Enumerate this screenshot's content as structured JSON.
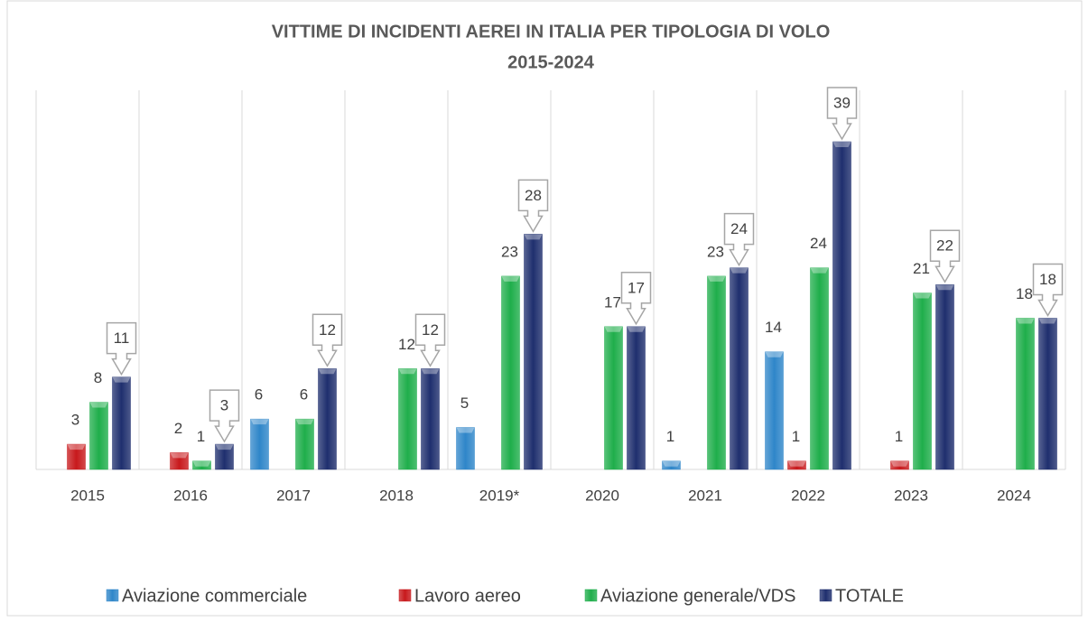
{
  "chart_data": {
    "type": "bar",
    "title": "VITTIME DI INCIDENTI AEREI IN ITALIA PER TIPOLOGIA DI VOLO",
    "subtitle": "2015-2024",
    "categories": [
      "2015",
      "2016",
      "2017",
      "2018",
      "2019*",
      "2020",
      "2021",
      "2022",
      "2023",
      "2024"
    ],
    "series": [
      {
        "name": "Aviazione commerciale",
        "color": "#2f86c9",
        "values": [
          null,
          null,
          6,
          null,
          5,
          null,
          1,
          14,
          null,
          null
        ]
      },
      {
        "name": "Lavoro aereo",
        "color": "#c8191c",
        "values": [
          3,
          2,
          null,
          null,
          null,
          null,
          null,
          1,
          1,
          null
        ]
      },
      {
        "name": "Aviazione generale/VDS",
        "color": "#1fae4b",
        "values": [
          8,
          1,
          6,
          12,
          23,
          17,
          23,
          24,
          21,
          18
        ]
      },
      {
        "name": "TOTALE",
        "color": "#1f2f6e",
        "values": [
          11,
          3,
          12,
          12,
          28,
          17,
          24,
          39,
          22,
          18
        ]
      }
    ],
    "callout_series": "TOTALE",
    "grid": true,
    "legend": "bottom"
  }
}
